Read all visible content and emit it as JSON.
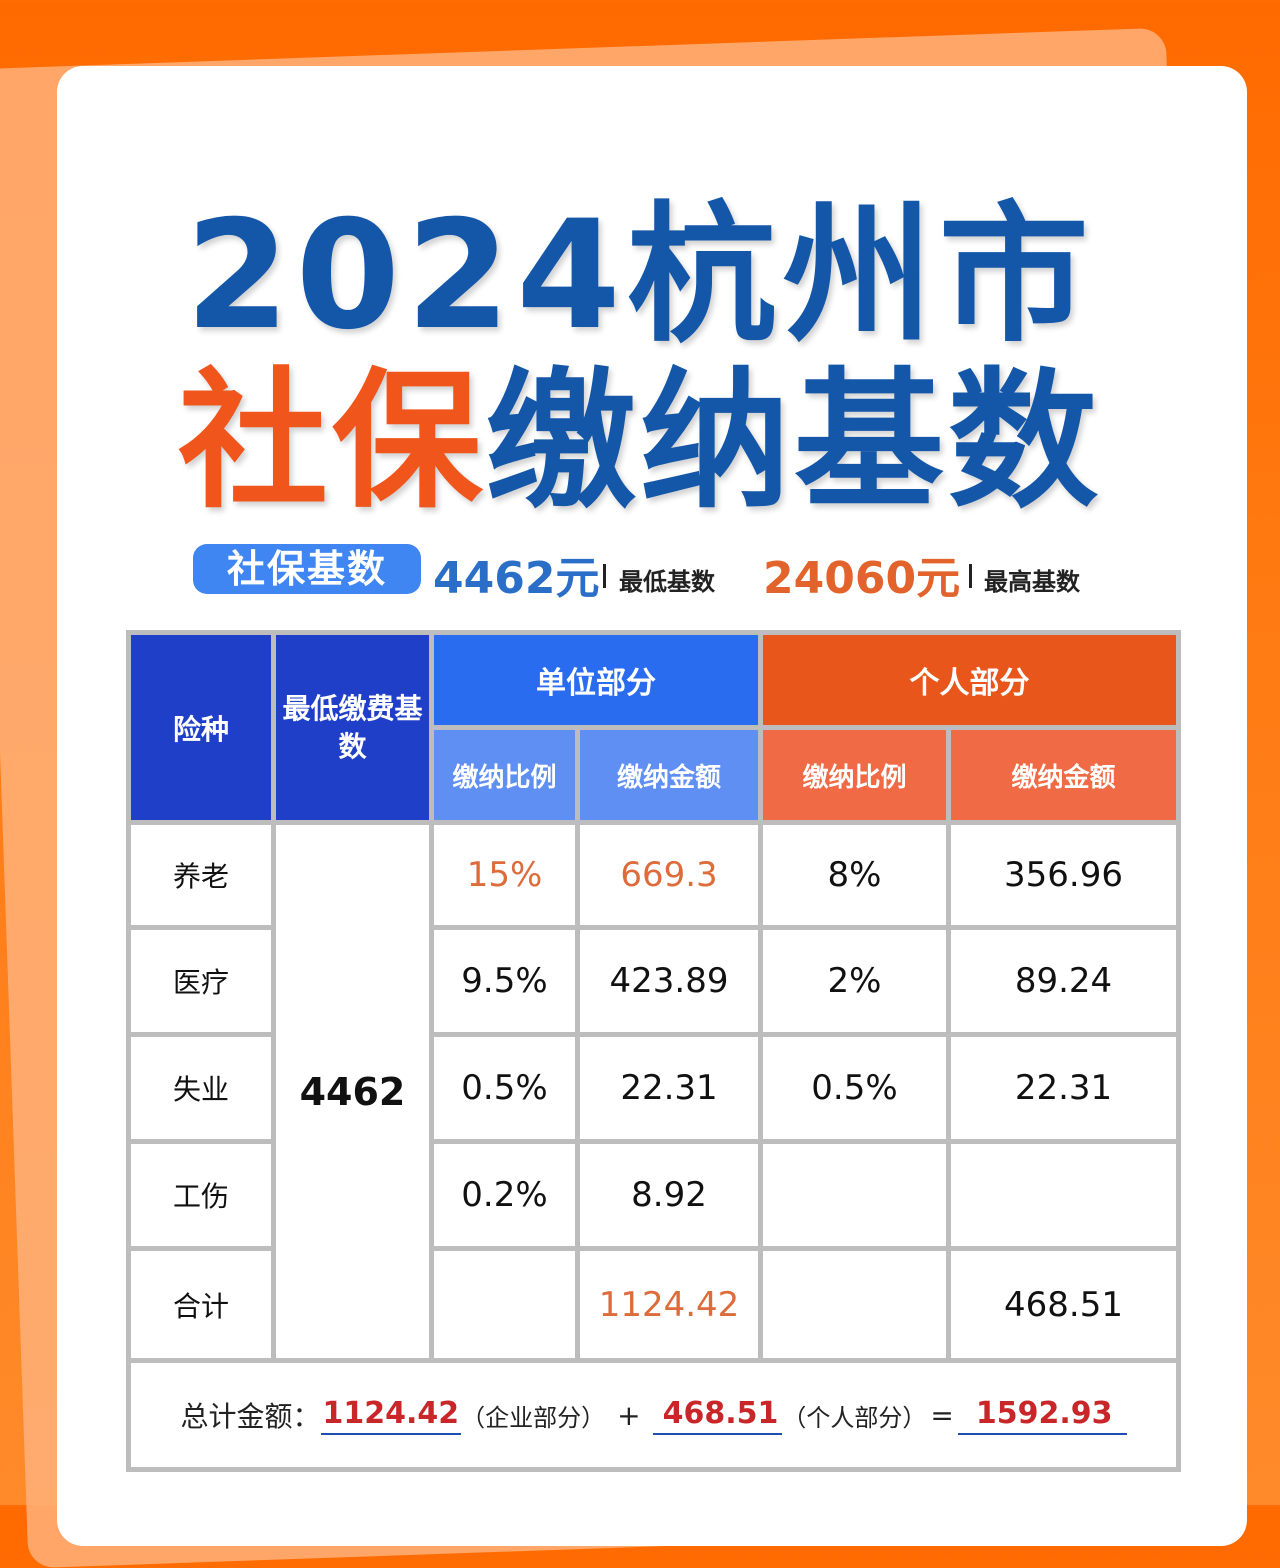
{
  "title": {
    "line1": "2024杭州市",
    "line2_orange": "社保",
    "line2_blue": "缴纳基数"
  },
  "summary": {
    "pill": "社保基数",
    "min_amount": "4462元",
    "min_label": "最低基数",
    "max_amount": "24060元",
    "max_label": "最高基数"
  },
  "table": {
    "headers": {
      "insurance": "险种",
      "base": "最低缴费基数",
      "employer": "单位部分",
      "personal": "个人部分",
      "employer_rate": "缴纳比例",
      "employer_amount": "缴纳金额",
      "personal_rate": "缴纳比例",
      "personal_amount": "缴纳金额"
    },
    "base_value": "4462",
    "rows": [
      {
        "name": "养老",
        "emp_rate": "15%",
        "emp_amount": "669.3",
        "per_rate": "8%",
        "per_amount": "356.96"
      },
      {
        "name": "医疗",
        "emp_rate": "9.5%",
        "emp_amount": "423.89",
        "per_rate": "2%",
        "per_amount": "89.24"
      },
      {
        "name": "失业",
        "emp_rate": "0.5%",
        "emp_amount": "22.31",
        "per_rate": "0.5%",
        "per_amount": "22.31"
      },
      {
        "name": "工伤",
        "emp_rate": "0.2%",
        "emp_amount": "8.92",
        "per_rate": "",
        "per_amount": ""
      },
      {
        "name": "合计",
        "emp_rate": "",
        "emp_amount": "1124.42",
        "per_rate": "",
        "per_amount": "468.51"
      }
    ],
    "footer": {
      "label": "总计金额：",
      "employer_total": "1124.42",
      "employer_note": "（企业部分）",
      "plus": "+",
      "personal_total": "468.51",
      "personal_note": "（个人部分）",
      "equals": "=",
      "grand_total": "1592.93"
    }
  }
}
